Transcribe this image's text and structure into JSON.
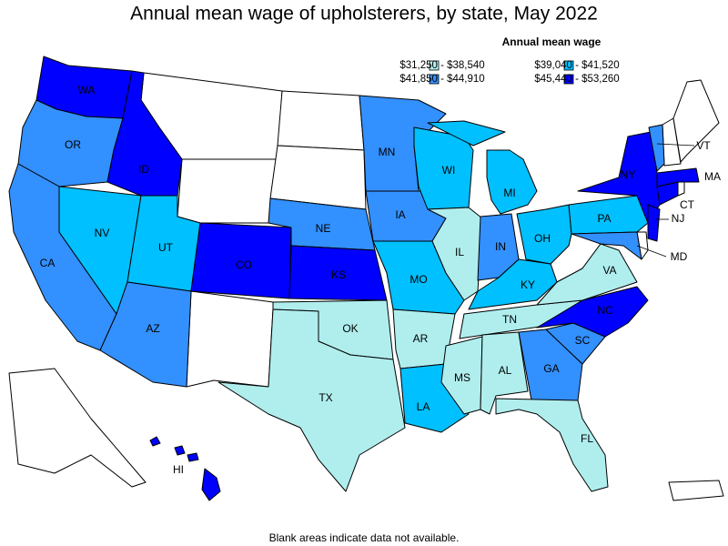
{
  "title": "Annual mean wage of upholsterers, by state, May 2022",
  "legend": {
    "title": "Annual mean wage",
    "items": [
      {
        "label": "$31,250 - $38,540",
        "color": "#b0eeee"
      },
      {
        "label": "$39,040 - $41,520",
        "color": "#00c0ff"
      },
      {
        "label": "$41,850 - $44,910",
        "color": "#3390ff"
      },
      {
        "label": "$45,440 - $53,260",
        "color": "#0000ff"
      }
    ]
  },
  "states": [
    {
      "label": "WA",
      "bin": 3
    },
    {
      "label": "OR",
      "bin": 2
    },
    {
      "label": "ID",
      "bin": 3
    },
    {
      "label": "CA",
      "bin": 2
    },
    {
      "label": "NV",
      "bin": 1
    },
    {
      "label": "UT",
      "bin": 1
    },
    {
      "label": "AZ",
      "bin": 2
    },
    {
      "label": "CO",
      "bin": 3
    },
    {
      "label": "NE",
      "bin": 2
    },
    {
      "label": "KS",
      "bin": 3
    },
    {
      "label": "OK",
      "bin": 0
    },
    {
      "label": "TX",
      "bin": 0
    },
    {
      "label": "MN",
      "bin": 2
    },
    {
      "label": "IA",
      "bin": 2
    },
    {
      "label": "MO",
      "bin": 1
    },
    {
      "label": "AR",
      "bin": 0
    },
    {
      "label": "LA",
      "bin": 1
    },
    {
      "label": "WI",
      "bin": 1
    },
    {
      "label": "IL",
      "bin": 0
    },
    {
      "label": "MS",
      "bin": 0
    },
    {
      "label": "MI",
      "bin": 1
    },
    {
      "label": "IN",
      "bin": 2
    },
    {
      "label": "KY",
      "bin": 1
    },
    {
      "label": "TN",
      "bin": 0
    },
    {
      "label": "AL",
      "bin": 0
    },
    {
      "label": "GA",
      "bin": 2
    },
    {
      "label": "FL",
      "bin": 0
    },
    {
      "label": "OH",
      "bin": 1
    },
    {
      "label": "SC",
      "bin": 2
    },
    {
      "label": "NC",
      "bin": 3
    },
    {
      "label": "VA",
      "bin": 0
    },
    {
      "label": "PA",
      "bin": 1
    },
    {
      "label": "NY",
      "bin": 3
    },
    {
      "label": "NJ",
      "bin": 3
    },
    {
      "label": "MD",
      "bin": 2
    },
    {
      "label": "CT",
      "bin": 3
    },
    {
      "label": "MA",
      "bin": 3
    },
    {
      "label": "VT",
      "bin": 2
    },
    {
      "label": "HI",
      "bin": 3
    }
  ],
  "footnote": "Blank areas indicate data not available."
}
